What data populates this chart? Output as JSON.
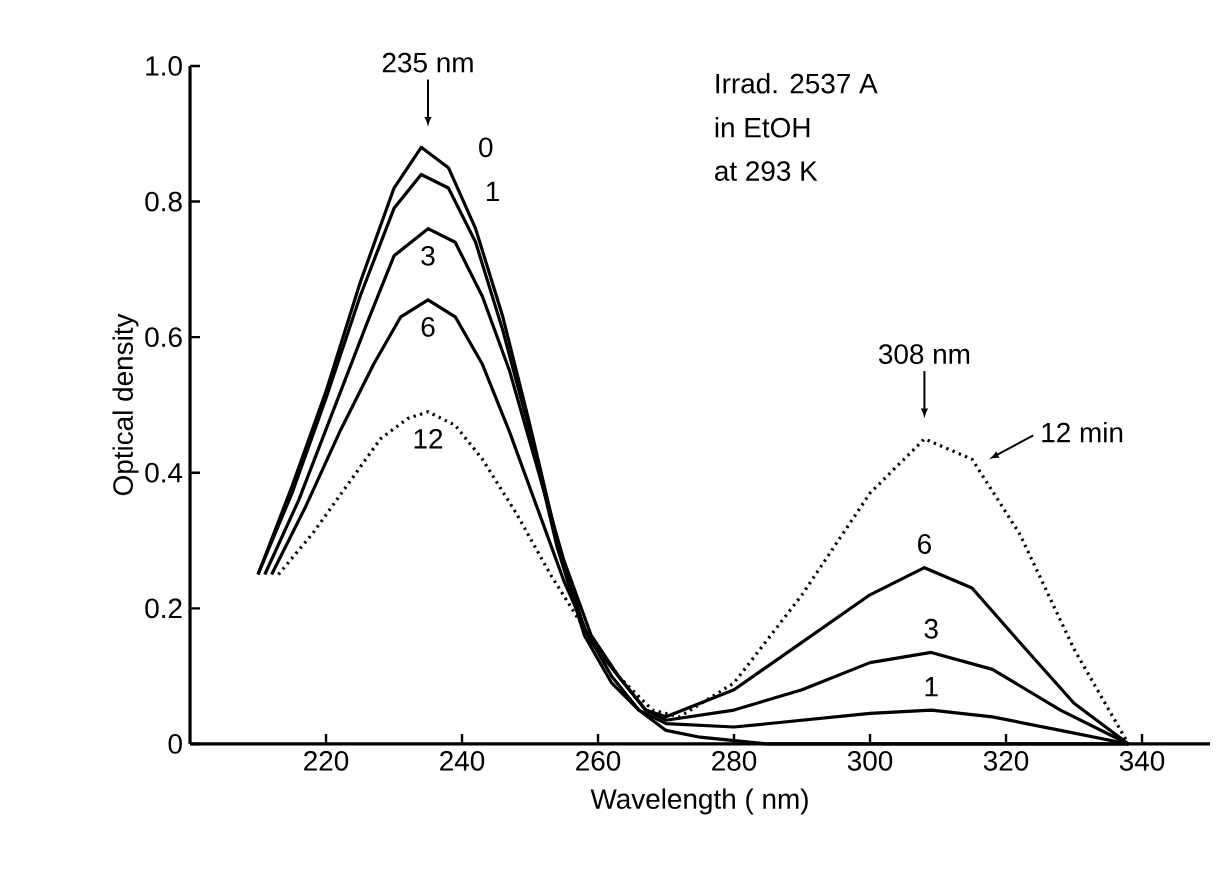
{
  "chart_data": {
    "type": "line",
    "xlabel": "Wavelength ( nm)",
    "ylabel": "Optical density",
    "xlim": [
      200,
      350
    ],
    "ylim": [
      0,
      1.0
    ],
    "xticks": [
      220,
      240,
      260,
      280,
      300,
      320,
      340
    ],
    "yticks": [
      {
        "value": 0,
        "label": "0"
      },
      0.2,
      0.4,
      0.6,
      0.8,
      {
        "value": 1.0,
        "label": "1.0"
      }
    ],
    "grid": false,
    "line_style": "solid",
    "series": [
      {
        "name": "0",
        "color": "#000000",
        "x": [
          210,
          215,
          220,
          225,
          230,
          234,
          238,
          242,
          246,
          250,
          254,
          258,
          262,
          266,
          270,
          275,
          285,
          300,
          320,
          338
        ],
        "values": [
          0.25,
          0.38,
          0.52,
          0.68,
          0.82,
          0.88,
          0.85,
          0.76,
          0.63,
          0.47,
          0.3,
          0.17,
          0.1,
          0.05,
          0.02,
          0.01,
          0,
          0,
          0,
          0
        ]
      },
      {
        "name": "1",
        "color": "#000000",
        "x": [
          210,
          215,
          220,
          225,
          230,
          234,
          238,
          242,
          246,
          250,
          254,
          258,
          262,
          266,
          270,
          280,
          290,
          300,
          309,
          318,
          328,
          338
        ],
        "values": [
          0.25,
          0.37,
          0.51,
          0.66,
          0.79,
          0.84,
          0.82,
          0.74,
          0.61,
          0.46,
          0.29,
          0.16,
          0.09,
          0.05,
          0.03,
          0.025,
          0.035,
          0.045,
          0.05,
          0.04,
          0.02,
          0
        ]
      },
      {
        "name": "3",
        "color": "#000000",
        "x": [
          211,
          216,
          221,
          226,
          230,
          235,
          239,
          243,
          247,
          251,
          255,
          259,
          263,
          267,
          270,
          280,
          290,
          300,
          309,
          318,
          328,
          338
        ],
        "values": [
          0.25,
          0.36,
          0.49,
          0.62,
          0.72,
          0.76,
          0.74,
          0.66,
          0.55,
          0.41,
          0.27,
          0.16,
          0.1,
          0.05,
          0.035,
          0.05,
          0.08,
          0.12,
          0.135,
          0.11,
          0.05,
          0
        ]
      },
      {
        "name": "6",
        "color": "#000000",
        "x": [
          212,
          217,
          222,
          227,
          231,
          235,
          239,
          243,
          247,
          251,
          255,
          259,
          263,
          267,
          270,
          280,
          290,
          300,
          308,
          315,
          322,
          330,
          338
        ],
        "values": [
          0.25,
          0.35,
          0.46,
          0.56,
          0.63,
          0.655,
          0.63,
          0.56,
          0.46,
          0.35,
          0.24,
          0.15,
          0.1,
          0.05,
          0.04,
          0.08,
          0.15,
          0.22,
          0.26,
          0.23,
          0.15,
          0.06,
          0
        ]
      },
      {
        "name": "12",
        "color": "#000000",
        "line_style": "dotted",
        "x": [
          213,
          218,
          223,
          228,
          232,
          235,
          239,
          243,
          248,
          253,
          258,
          263,
          268,
          272,
          280,
          290,
          300,
          308,
          315,
          322,
          330,
          338
        ],
        "values": [
          0.25,
          0.31,
          0.38,
          0.45,
          0.48,
          0.49,
          0.47,
          0.42,
          0.34,
          0.25,
          0.17,
          0.1,
          0.05,
          0.04,
          0.09,
          0.22,
          0.37,
          0.45,
          0.42,
          0.31,
          0.14,
          0
        ]
      }
    ],
    "annotations": [
      {
        "text": "235 nm",
        "x": 235,
        "y": 0.88
      },
      {
        "text": "308 nm",
        "x": 308,
        "y": 0.45
      },
      "Irrad. 2537 A",
      "in EtOH",
      "at 293 K",
      {
        "text": "6",
        "x": 308,
        "y": 0.26
      },
      {
        "text": "3",
        "x": 309,
        "y": 0.135
      },
      {
        "text": "1",
        "x": 309,
        "y": 0.05
      },
      {
        "text": "12 min",
        "x": 316,
        "y": 0.42
      }
    ]
  }
}
